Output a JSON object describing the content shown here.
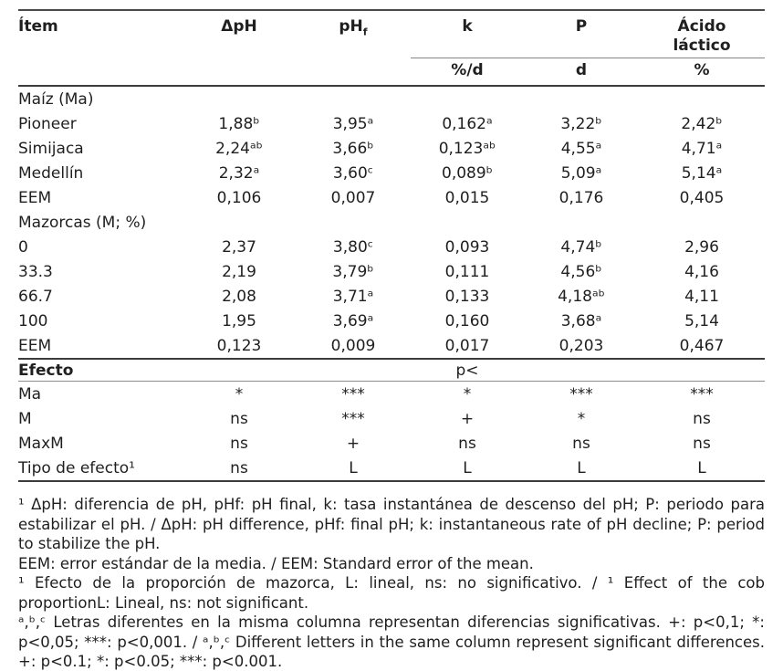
{
  "table": {
    "header": {
      "item": "Ítem",
      "dph": "ΔpH",
      "phf_base": "pH",
      "phf_sub": "f",
      "k": "k",
      "p": "P",
      "lactic_line1": "Ácido",
      "lactic_line2": "láctico",
      "unit_k": "%/d",
      "unit_p": "d",
      "unit_lactic": "%"
    },
    "sections": [
      {
        "title": "Maíz (Ma)",
        "rows": [
          {
            "label": "Pioneer",
            "cells": [
              "1,88ᵇ",
              "3,95ᵃ",
              "0,162ᵃ",
              "3,22ᵇ",
              "2,42ᵇ"
            ]
          },
          {
            "label": "Simijaca",
            "cells": [
              "2,24ᵃᵇ",
              "3,66ᵇ",
              "0,123ᵃᵇ",
              "4,55ᵃ",
              "4,71ᵃ"
            ]
          },
          {
            "label": "Medellín",
            "cells": [
              "2,32ᵃ",
              "3,60ᶜ",
              "0,089ᵇ",
              "5,09ᵃ",
              "5,14ᵃ"
            ]
          },
          {
            "label": "EEM",
            "cells": [
              "0,106",
              "0,007",
              "0,015",
              "0,176",
              "0,405"
            ]
          }
        ]
      },
      {
        "title": "Mazorcas (M; %)",
        "rows": [
          {
            "label": "0",
            "cells": [
              "2,37",
              "3,80ᶜ",
              "0,093",
              "4,74ᵇ",
              "2,96"
            ]
          },
          {
            "label": "33.3",
            "cells": [
              "2,19",
              "3,79ᵇ",
              "0,111",
              "4,56ᵇ",
              "4,16"
            ]
          },
          {
            "label": "66.7",
            "cells": [
              "2,08",
              "3,71ᵃ",
              "0,133",
              "4,18ᵃᵇ",
              "4,11"
            ]
          },
          {
            "label": "100",
            "cells": [
              "1,95",
              "3,69ᵃ",
              "0,160",
              "3,68ᵃ",
              "5,14"
            ]
          },
          {
            "label": "EEM",
            "cells": [
              "0,123",
              "0,009",
              "0,017",
              "0,203",
              "0,467"
            ]
          }
        ]
      }
    ],
    "effects": {
      "label": "Efecto",
      "p_label": "p<",
      "rows": [
        {
          "label": "Ma",
          "cells": [
            "*",
            "***",
            "*",
            "***",
            "***"
          ]
        },
        {
          "label": "M",
          "cells": [
            "ns",
            "***",
            "+",
            "*",
            "ns"
          ]
        },
        {
          "label": "MaxM",
          "cells": [
            "ns",
            "+",
            "ns",
            "ns",
            "ns"
          ]
        },
        {
          "label": "Tipo de efecto¹",
          "cells": [
            "ns",
            "L",
            "L",
            "L",
            "L"
          ]
        }
      ]
    }
  },
  "footnotes": [
    "¹ ΔpH: diferencia de pH, pHf: pH final, k: tasa instantánea de descenso del pH; P: periodo para estabilizar el pH. / ΔpH: pH difference, pHf: final pH; k: instantaneous rate of pH decline; P: period to stabilize the pH.",
    "EEM: error estándar de la media. / EEM: Standard error of the mean.",
    "¹ Efecto de la proporción de mazorca, L: lineal, ns: no significativo. / ¹ Effect of the cob proportionL: Lineal, ns: not significant.",
    "ᵃ,ᵇ,ᶜ Letras diferentes en la misma columna representan diferencias significativas. +: p<0,1; *: p<0,05; ***: p<0,001. / ᵃ,ᵇ,ᶜ Different letters in the same column represent significant differences. +: p<0.1; *: p<0.05; ***: p<0.001."
  ],
  "colors": {
    "text": "#1f1f1f",
    "rule_heavy": "#3c3c3c",
    "rule_light": "#8c8c8c",
    "background": "#ffffff"
  }
}
